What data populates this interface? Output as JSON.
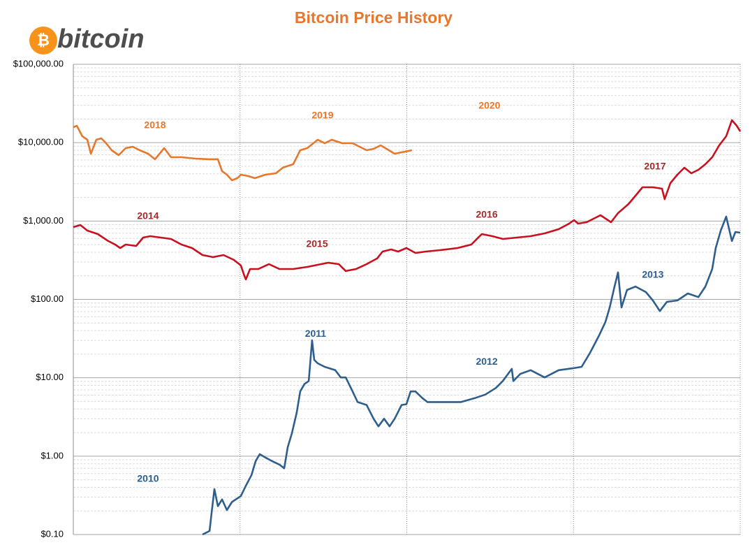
{
  "logo": {
    "symbol": "₿",
    "text": "bitcoin"
  },
  "chart_data": {
    "type": "line",
    "title": "Bitcoin Price History",
    "log_scale": true,
    "grid": true,
    "minor_grid": true,
    "xlim": [
      0,
      4
    ],
    "xticks": [
      0,
      1,
      2,
      3,
      4
    ],
    "ylim": [
      0.1,
      100000
    ],
    "yticks": [
      {
        "value": 0.1,
        "label": "$0.10"
      },
      {
        "value": 1,
        "label": "$1.00"
      },
      {
        "value": 10,
        "label": "$10.00"
      },
      {
        "value": 100,
        "label": "$100.00"
      },
      {
        "value": 1000,
        "label": "$1,000.00"
      },
      {
        "value": 10000,
        "label": "$10,000.00"
      },
      {
        "value": 100000,
        "label": "$100,000.00"
      }
    ],
    "series": [
      {
        "color": "#2e5e8e",
        "x": [
          0.775,
          0.817,
          0.829,
          0.846,
          0.867,
          0.892,
          0.921,
          0.951,
          1.005,
          1.035,
          1.068,
          1.093,
          1.118,
          1.152,
          1.194,
          1.236,
          1.265,
          1.286,
          1.311,
          1.34,
          1.361,
          1.386,
          1.412,
          1.432,
          1.445,
          1.466,
          1.508,
          1.571,
          1.604,
          1.634,
          1.675,
          1.705,
          1.759,
          1.801,
          1.83,
          1.864,
          1.897,
          1.927,
          1.969,
          1.998,
          2.023,
          2.052,
          2.094,
          2.124,
          2.178,
          2.241,
          2.325,
          2.408,
          2.471,
          2.534,
          2.576,
          2.63,
          2.639,
          2.681,
          2.743,
          2.827,
          2.911,
          2.995,
          3.049,
          3.099,
          3.154,
          3.192,
          3.217,
          3.246,
          3.267,
          3.288,
          3.321,
          3.372,
          3.434,
          3.476,
          3.518,
          3.56,
          3.623,
          3.686,
          3.749,
          3.791,
          3.832,
          3.853,
          3.883,
          3.916,
          3.95,
          3.971,
          4.0
        ],
        "values": [
          0.1,
          0.111,
          0.185,
          0.38,
          0.23,
          0.28,
          0.205,
          0.26,
          0.31,
          0.42,
          0.57,
          0.86,
          1.06,
          0.96,
          0.86,
          0.78,
          0.7,
          1.3,
          1.96,
          3.6,
          6.7,
          8.3,
          9.1,
          30,
          16.9,
          15.3,
          13.8,
          12.5,
          10.1,
          10.1,
          6.7,
          4.9,
          4.5,
          3.0,
          2.4,
          3.0,
          2.4,
          3.0,
          4.5,
          4.6,
          6.7,
          6.7,
          5.5,
          4.9,
          4.9,
          4.9,
          4.9,
          5.5,
          6.1,
          7.4,
          9.1,
          13.0,
          9.1,
          11.2,
          12.5,
          10.1,
          12.5,
          13.2,
          13.8,
          20.8,
          34.8,
          52,
          79,
          146,
          221,
          79,
          132,
          146,
          124,
          97,
          71,
          93,
          97,
          119,
          107,
          146,
          244,
          452,
          755,
          1140,
          556,
          725,
          710
        ]
      },
      {
        "color": "#c8101e",
        "x": [
          0.0,
          0.042,
          0.084,
          0.147,
          0.209,
          0.251,
          0.281,
          0.314,
          0.377,
          0.419,
          0.461,
          0.524,
          0.586,
          0.649,
          0.712,
          0.775,
          0.838,
          0.901,
          0.963,
          1.005,
          1.026,
          1.035,
          1.06,
          1.11,
          1.173,
          1.236,
          1.319,
          1.403,
          1.487,
          1.529,
          1.592,
          1.634,
          1.696,
          1.759,
          1.822,
          1.855,
          1.906,
          1.948,
          1.998,
          2.052,
          2.115,
          2.199,
          2.304,
          2.387,
          2.429,
          2.45,
          2.513,
          2.576,
          2.66,
          2.743,
          2.827,
          2.911,
          2.974,
          3.003,
          3.028,
          3.079,
          3.162,
          3.225,
          3.267,
          3.33,
          3.372,
          3.414,
          3.476,
          3.531,
          3.547,
          3.581,
          3.623,
          3.665,
          3.707,
          3.749,
          3.791,
          3.832,
          3.874,
          3.916,
          3.95,
          3.979,
          4.0
        ],
        "values": [
          837,
          891,
          755,
          682,
          556,
          501,
          452,
          501,
          481,
          615,
          641,
          615,
          590,
          501,
          452,
          368,
          346,
          368,
          319,
          271,
          199,
          180,
          244,
          244,
          282,
          244,
          244,
          260,
          282,
          294,
          282,
          230,
          244,
          282,
          333,
          408,
          434,
          408,
          452,
          392,
          408,
          425,
          452,
          501,
          615,
          682,
          641,
          590,
          615,
          641,
          696,
          787,
          927,
          1028,
          927,
          966,
          1186,
          966,
          1262,
          1648,
          2109,
          2699,
          2699,
          2589,
          1902,
          3051,
          3902,
          4794,
          4067,
          4506,
          5311,
          6519,
          9247,
          12080,
          19360,
          16410,
          13940
        ]
      },
      {
        "color": "#e8772e",
        "x": [
          0.0,
          0.021,
          0.054,
          0.084,
          0.105,
          0.138,
          0.168,
          0.197,
          0.23,
          0.272,
          0.314,
          0.356,
          0.398,
          0.448,
          0.49,
          0.545,
          0.586,
          0.649,
          0.733,
          0.817,
          0.867,
          0.892,
          0.921,
          0.951,
          0.984,
          1.005,
          1.047,
          1.089,
          1.152,
          1.215,
          1.257,
          1.319,
          1.361,
          1.403,
          1.466,
          1.508,
          1.55,
          1.613,
          1.675,
          1.717,
          1.759,
          1.801,
          1.843,
          1.872,
          1.927,
          1.969,
          2.031
        ],
        "values": [
          15770,
          16410,
          12080,
          10890,
          7230,
          10890,
          11350,
          9830,
          8000,
          6930,
          8510,
          8870,
          8000,
          7230,
          6140,
          8510,
          6520,
          6520,
          6260,
          6140,
          6140,
          4330,
          3900,
          3310,
          3520,
          3900,
          3750,
          3520,
          3900,
          4070,
          4800,
          5310,
          8000,
          8510,
          10890,
          9830,
          10890,
          9830,
          9830,
          8870,
          8000,
          8340,
          9250,
          8510,
          7230,
          7530,
          8000
        ]
      }
    ],
    "annotations": [
      {
        "text": "2010",
        "x": 0.448,
        "y": 0.51,
        "color": "#2e5e8e"
      },
      {
        "text": "2011",
        "x": 1.453,
        "y": 36,
        "color": "#2e5e8e"
      },
      {
        "text": "2012",
        "x": 2.48,
        "y": 15.9,
        "color": "#2e5e8e"
      },
      {
        "text": "2013",
        "x": 3.476,
        "y": 203,
        "color": "#2e5e8e"
      },
      {
        "text": "2014",
        "x": 0.448,
        "y": 1140,
        "color": "#a52a2a"
      },
      {
        "text": "2015",
        "x": 1.462,
        "y": 501,
        "color": "#a52a2a"
      },
      {
        "text": "2016",
        "x": 2.48,
        "y": 1186,
        "color": "#a52a2a"
      },
      {
        "text": "2017",
        "x": 3.489,
        "y": 4890,
        "color": "#a52a2a"
      },
      {
        "text": "2018",
        "x": 0.49,
        "y": 16410,
        "color": "#e8772e"
      },
      {
        "text": "2019",
        "x": 1.495,
        "y": 21900,
        "color": "#e8772e"
      },
      {
        "text": "2020",
        "x": 2.496,
        "y": 29200,
        "color": "#e8772e"
      }
    ]
  }
}
